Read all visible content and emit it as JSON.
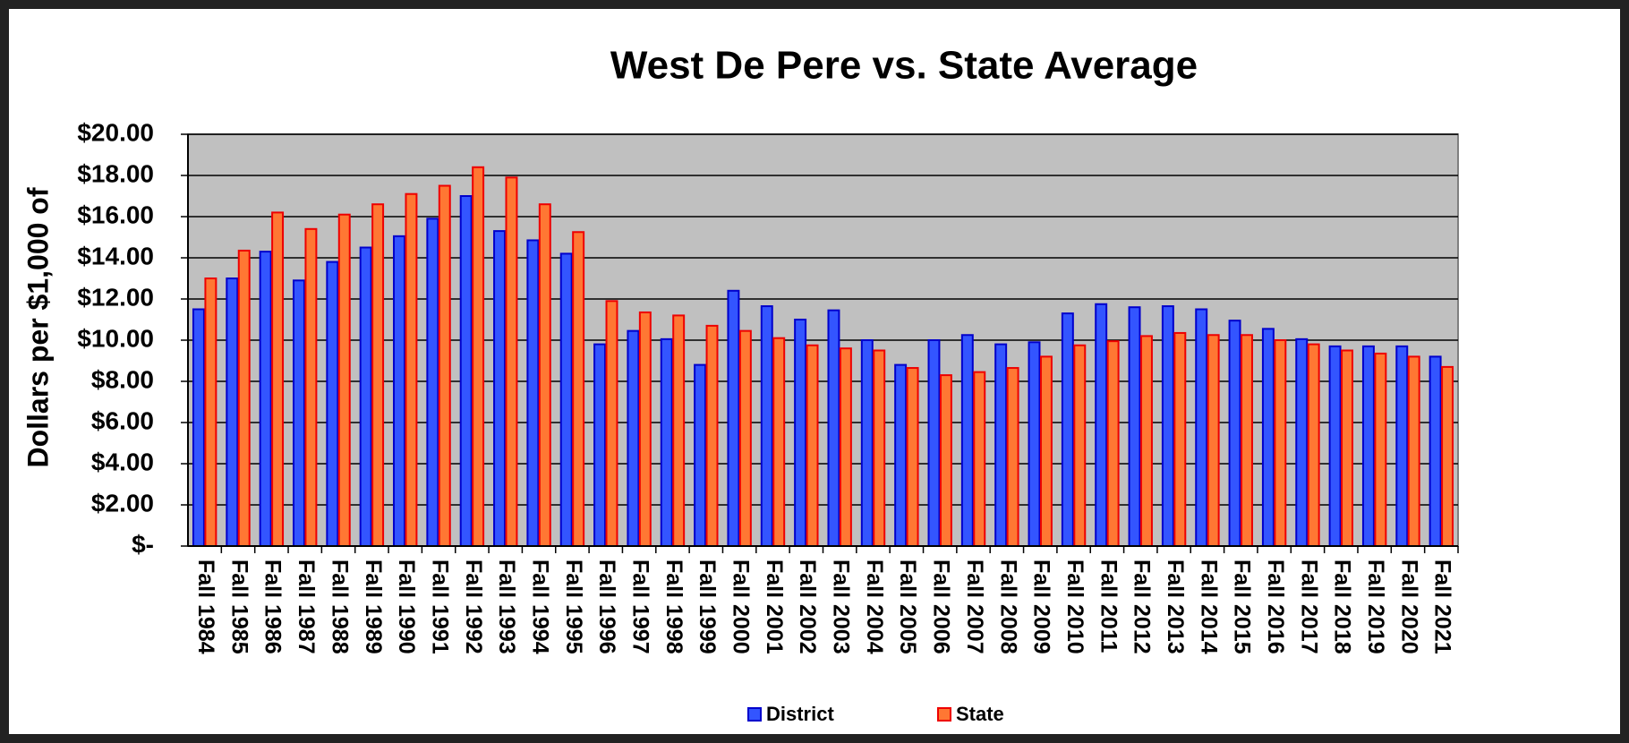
{
  "chart_data": {
    "type": "bar",
    "title": "West De Pere vs. State Average",
    "y_label": "Dollars per $1,000 of",
    "categories": [
      "Fall 1984",
      "Fall 1985",
      "Fall 1986",
      "Fall 1987",
      "Fall 1988",
      "Fall 1989",
      "Fall 1990",
      "Fall 1991",
      "Fall 1992",
      "Fall 1993",
      "Fall 1994",
      "Fall 1995",
      "Fall 1996",
      "Fall 1997",
      "Fall 1998",
      "Fall 1999",
      "Fall 2000",
      "Fall 2001",
      "Fall 2002",
      "Fall 2003",
      "Fall 2004",
      "Fall 2005",
      "Fall 2006",
      "Fall 2007",
      "Fall 2008",
      "Fall 2009",
      "Fall 2010",
      "Fall 2011",
      "Fall 2012",
      "Fall 2013",
      "Fall 2014",
      "Fall 2015",
      "Fall 2016",
      "Fall 2017",
      "Fall 2018",
      "Fall 2019",
      "Fall 2020",
      "Fall 2021"
    ],
    "series": [
      {
        "name": "District",
        "color": "#3355ff",
        "edge": "#0000cc",
        "values": [
          11.5,
          13.0,
          14.3,
          12.9,
          13.8,
          14.5,
          15.05,
          15.9,
          17.0,
          15.3,
          14.85,
          14.2,
          9.8,
          10.45,
          10.05,
          8.8,
          12.4,
          11.65,
          11.0,
          11.45,
          10.0,
          8.8,
          10.0,
          10.25,
          9.8,
          9.9,
          11.3,
          11.75,
          11.6,
          11.65,
          11.5,
          10.95,
          10.55,
          10.05,
          9.7,
          9.7,
          9.7,
          9.2
        ]
      },
      {
        "name": "State",
        "color": "#ff7733",
        "edge": "#ee0000",
        "values": [
          13.0,
          14.35,
          16.2,
          15.4,
          16.1,
          16.6,
          17.1,
          17.5,
          18.4,
          17.9,
          16.6,
          15.25,
          11.9,
          11.35,
          11.2,
          10.7,
          10.45,
          10.1,
          9.75,
          9.6,
          9.5,
          8.65,
          8.3,
          8.45,
          8.65,
          9.2,
          9.75,
          9.95,
          10.2,
          10.35,
          10.25,
          10.25,
          10.0,
          9.8,
          9.5,
          9.35,
          9.2,
          8.7
        ]
      }
    ],
    "ylim": [
      0,
      20
    ],
    "yticks": [
      {
        "value": 0,
        "label": "$-"
      },
      {
        "value": 2,
        "label": "$2.00"
      },
      {
        "value": 4,
        "label": "$4.00"
      },
      {
        "value": 6,
        "label": "$6.00"
      },
      {
        "value": 8,
        "label": "$8.00"
      },
      {
        "value": 10,
        "label": "$10.00"
      },
      {
        "value": 12,
        "label": "$12.00"
      },
      {
        "value": 14,
        "label": "$14.00"
      },
      {
        "value": 16,
        "label": "$16.00"
      },
      {
        "value": 18,
        "label": "$18.00"
      },
      {
        "value": 20,
        "label": "$20.00"
      }
    ],
    "grid": true,
    "plot_background": "#c0c0c0",
    "legend": "bottom"
  }
}
